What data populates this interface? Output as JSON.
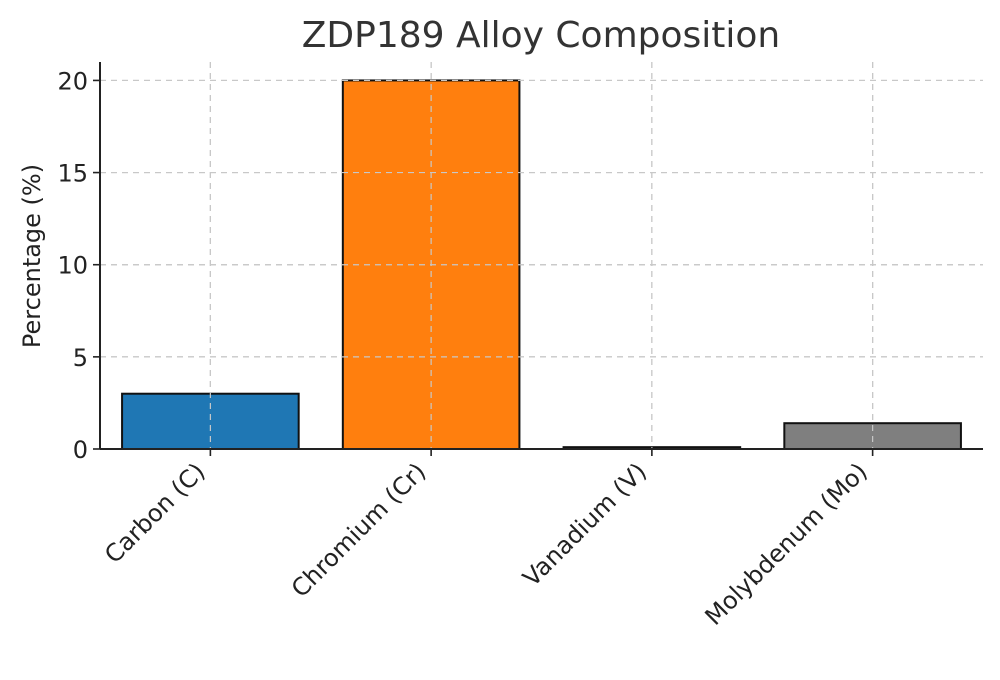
{
  "chart_data": {
    "type": "bar",
    "title": "ZDP189 Alloy Composition",
    "xlabel": "",
    "ylabel": "Percentage (%)",
    "categories": [
      "Carbon (C)",
      "Chromium (Cr)",
      "Vanadium (V)",
      "Molybdenum (Mo)"
    ],
    "values": [
      3.0,
      20.0,
      0.1,
      1.4
    ],
    "colors": [
      "#1f77b4",
      "#ff7f0e",
      "#2ca02c",
      "#7f7f7f"
    ],
    "ylim": [
      0,
      21
    ],
    "yticks": [
      0,
      5,
      10,
      15,
      20
    ],
    "grid": true,
    "legend": "none"
  }
}
